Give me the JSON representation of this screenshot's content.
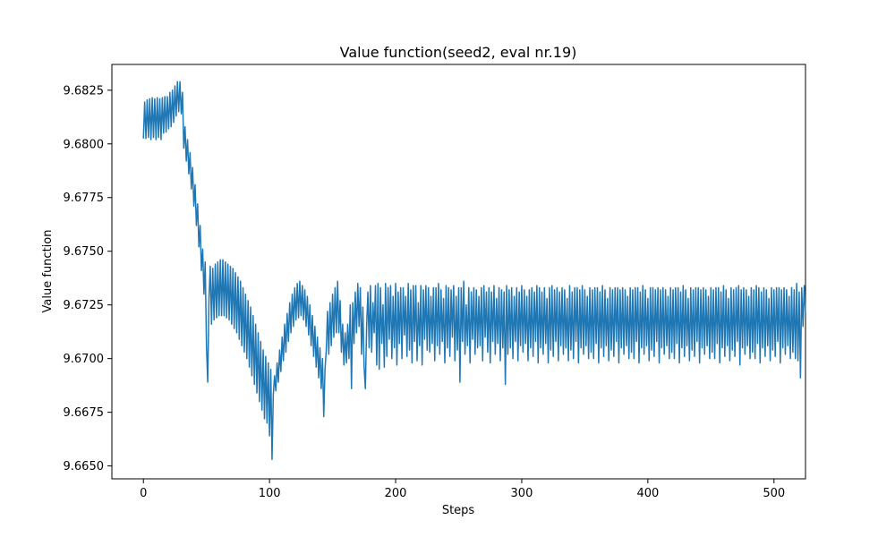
{
  "chart_data": {
    "type": "line",
    "title": "Value function(seed2, eval nr.19)",
    "xlabel": "Steps",
    "ylabel": "Value function",
    "xlim": [
      -25,
      525
    ],
    "ylim": [
      9.6644,
      9.6837
    ],
    "x_ticks": [
      0,
      100,
      200,
      300,
      400,
      500
    ],
    "x_tick_labels": [
      "0",
      "100",
      "200",
      "300",
      "400",
      "500"
    ],
    "y_ticks": [
      9.665,
      9.6675,
      9.67,
      9.6725,
      9.675,
      9.6775,
      9.68,
      9.6825
    ],
    "y_tick_labels": [
      "9.6650",
      "9.6675",
      "9.6700",
      "9.6725",
      "9.6750",
      "9.6775",
      "9.6800",
      "9.6825"
    ],
    "grid": false,
    "legend": "none",
    "series": [
      {
        "color": "#1f77b4",
        "x_start": 0,
        "x_step": 1,
        "y": [
          9.68025,
          9.68195,
          9.68025,
          9.68205,
          9.6803,
          9.6821,
          9.6802,
          9.68215,
          9.6803,
          9.6821,
          9.6802,
          9.68215,
          9.6803,
          9.6821,
          9.6802,
          9.68215,
          9.6805,
          9.6822,
          9.68055,
          9.6822,
          9.6807,
          9.6824,
          9.6808,
          9.6825,
          9.681,
          9.6827,
          9.6813,
          9.6829,
          9.6815,
          9.6829,
          9.6814,
          9.6824,
          9.6798,
          9.6808,
          9.6792,
          9.6802,
          9.6786,
          9.6796,
          9.6779,
          9.6789,
          9.6771,
          9.6781,
          9.6762,
          9.6772,
          9.6752,
          9.6762,
          9.6741,
          9.6751,
          9.673,
          9.6745,
          9.6706,
          9.6689,
          9.6728,
          9.6743,
          9.6716,
          9.6742,
          9.6718,
          9.6744,
          9.6719,
          9.6745,
          9.672,
          9.6746,
          9.672,
          9.6746,
          9.672,
          9.6745,
          9.6719,
          9.6744,
          9.6718,
          9.6743,
          9.6716,
          9.6742,
          9.6714,
          9.674,
          9.6712,
          9.6738,
          9.6709,
          9.6736,
          9.6706,
          9.6733,
          9.6703,
          9.673,
          9.67,
          9.6727,
          9.6696,
          9.6724,
          9.6692,
          9.672,
          9.6688,
          9.6716,
          9.6684,
          9.6712,
          9.668,
          9.6708,
          9.6676,
          9.6704,
          9.6672,
          9.6701,
          9.667,
          9.6698,
          9.6664,
          9.6695,
          9.6653,
          9.6683,
          9.6692,
          9.6685,
          9.6698,
          9.6689,
          9.6704,
          9.6694,
          9.671,
          9.6699,
          9.6716,
          9.6703,
          9.6721,
          9.6708,
          9.6726,
          9.6712,
          9.673,
          9.6715,
          9.6733,
          9.6718,
          9.6735,
          9.6719,
          9.6736,
          9.672,
          9.6734,
          9.6718,
          9.6732,
          9.6715,
          9.6729,
          9.6711,
          9.6725,
          9.6706,
          9.672,
          9.6701,
          9.6715,
          9.6696,
          9.671,
          9.6691,
          9.6705,
          9.6686,
          9.67,
          9.6673,
          9.6695,
          9.6704,
          9.6722,
          9.6702,
          9.6726,
          9.6706,
          9.673,
          9.671,
          9.6733,
          9.6712,
          9.6736,
          9.6712,
          9.6727,
          9.6703,
          9.6716,
          9.6697,
          9.6712,
          9.6698,
          9.6716,
          9.67,
          9.6725,
          9.6686,
          9.6726,
          9.6707,
          9.6731,
          9.6712,
          9.6735,
          9.6715,
          9.6733,
          9.6702,
          9.6724,
          9.6696,
          9.6686,
          9.6715,
          9.6731,
          9.6705,
          9.6734,
          9.6703,
          9.6726,
          9.6712,
          9.6734,
          9.6697,
          9.6735,
          9.6695,
          9.6733,
          9.6707,
          9.6725,
          9.6696,
          9.6735,
          9.6701,
          9.6733,
          9.6709,
          9.6734,
          9.67,
          9.6729,
          9.6705,
          9.6735,
          9.6697,
          9.6731,
          9.6707,
          9.6733,
          9.67,
          9.6733,
          9.6711,
          9.6729,
          9.6701,
          9.6735,
          9.6704,
          9.6732,
          9.6698,
          9.6734,
          9.6708,
          9.6734,
          9.6699,
          9.6726,
          9.6706,
          9.6734,
          9.6697,
          9.6732,
          9.6709,
          9.6734,
          9.6704,
          9.6733,
          9.6703,
          9.6729,
          9.6707,
          9.6733,
          9.6699,
          9.6733,
          9.6706,
          9.6735,
          9.6702,
          9.6732,
          9.6708,
          9.6728,
          9.6698,
          9.6734,
          9.6705,
          9.6733,
          9.6701,
          9.6732,
          9.671,
          9.6734,
          9.6699,
          9.6729,
          9.6704,
          9.6733,
          9.6689,
          9.6733,
          9.6708,
          9.6736,
          9.6702,
          9.6725,
          9.6706,
          9.6733,
          9.6698,
          9.6731,
          9.6709,
          9.6733,
          9.6702,
          9.6732,
          9.6705,
          9.6729,
          9.6706,
          9.6733,
          9.6699,
          9.6734,
          9.671,
          9.6731,
          9.6703,
          9.6733,
          9.6698,
          9.6731,
          9.6708,
          9.6734,
          9.6702,
          9.6728,
          9.6707,
          9.6733,
          9.6699,
          9.6732,
          9.6705,
          9.6731,
          9.6688,
          9.6734,
          9.6702,
          9.6732,
          9.6705,
          9.6733,
          9.67,
          9.6729,
          9.6708,
          9.6733,
          9.6699,
          9.6731,
          9.6706,
          9.6734,
          9.6703,
          9.6732,
          9.6707,
          9.6729,
          9.6699,
          9.6732,
          9.6705,
          9.6733,
          9.6701,
          9.6731,
          9.6708,
          9.6734,
          9.6698,
          9.6733,
          9.6705,
          9.6731,
          9.6702,
          9.6733,
          9.6707,
          9.6728,
          9.6698,
          9.6733,
          9.6704,
          9.6734,
          9.6701,
          9.6732,
          9.6708,
          9.6733,
          9.6699,
          9.6731,
          9.6706,
          9.6733,
          9.6702,
          9.6732,
          9.6705,
          9.6728,
          9.6699,
          9.6734,
          9.6704,
          9.6731,
          9.67,
          9.6733,
          9.6708,
          9.6733,
          9.6698,
          9.6732,
          9.6705,
          9.6734,
          9.6702,
          9.6732,
          9.6706,
          9.6729,
          9.67,
          9.6733,
          9.6703,
          9.6732,
          9.67,
          9.6733,
          9.6707,
          9.6733,
          9.6698,
          9.6731,
          9.6705,
          9.6734,
          9.6701,
          9.6732,
          9.6706,
          9.6728,
          9.6699,
          9.6733,
          9.6704,
          9.6732,
          9.6701,
          9.6733,
          9.6708,
          9.6733,
          9.6698,
          9.6732,
          9.6705,
          9.6733,
          9.6702,
          9.6732,
          9.6706,
          9.6729,
          9.67,
          9.6733,
          9.6703,
          9.6732,
          9.67,
          9.6733,
          9.6708,
          9.6733,
          9.6698,
          9.6731,
          9.6705,
          9.6734,
          9.6702,
          9.6732,
          9.6706,
          9.6728,
          9.6699,
          9.6733,
          9.6704,
          9.6733,
          9.6701,
          9.6732,
          9.6708,
          9.6733,
          9.6698,
          9.6732,
          9.6705,
          9.6733,
          9.6702,
          9.6732,
          9.6706,
          9.6729,
          9.67,
          9.6733,
          9.6703,
          9.6732,
          9.67,
          9.6733,
          9.6707,
          9.6733,
          9.6698,
          9.6731,
          9.6705,
          9.6734,
          9.6701,
          9.6732,
          9.6706,
          9.6728,
          9.6699,
          9.6733,
          9.6704,
          9.6732,
          9.6701,
          9.6733,
          9.6708,
          9.6733,
          9.6698,
          9.6732,
          9.6705,
          9.6733,
          9.6702,
          9.6732,
          9.6706,
          9.6729,
          9.67,
          9.6733,
          9.6703,
          9.6732,
          9.67,
          9.6733,
          9.6707,
          9.6733,
          9.6698,
          9.6731,
          9.6705,
          9.6734,
          9.6701,
          9.6732,
          9.6706,
          9.6728,
          9.6699,
          9.6733,
          9.6704,
          9.6732,
          9.6701,
          9.6733,
          9.6708,
          9.6734,
          9.6697,
          9.6732,
          9.6705,
          9.6733,
          9.6702,
          9.6732,
          9.6706,
          9.6729,
          9.67,
          9.6733,
          9.6703,
          9.6732,
          9.67,
          9.6734,
          9.6707,
          9.6733,
          9.6698,
          9.6731,
          9.6705,
          9.6733,
          9.6701,
          9.6732,
          9.6706,
          9.6728,
          9.6699,
          9.6733,
          9.6704,
          9.6732,
          9.6701,
          9.6733,
          9.6708,
          9.6733,
          9.6698,
          9.6732,
          9.6705,
          9.6733,
          9.6702,
          9.6732,
          9.6706,
          9.6729,
          9.67,
          9.6733,
          9.6703,
          9.6732,
          9.67,
          9.6735,
          9.6699,
          9.6731,
          9.6691,
          9.6733,
          9.6715,
          9.6734,
          9.6721
        ]
      }
    ]
  }
}
